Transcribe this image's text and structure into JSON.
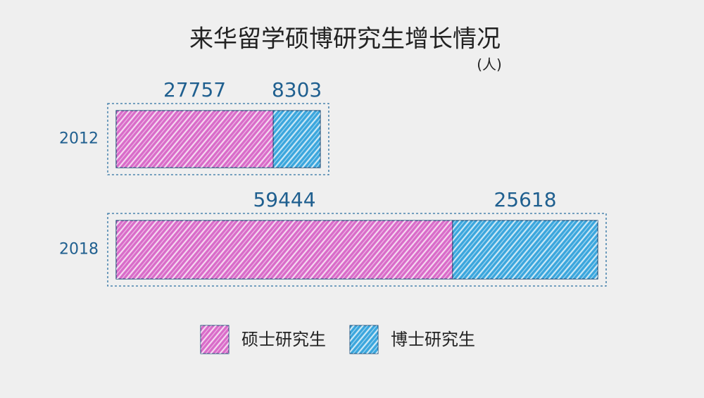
{
  "chart_data": {
    "type": "stacked_bar_horizontal",
    "title": "来华留学硕博研究生增长情况",
    "unit": "(人)",
    "categories": [
      "2012",
      "2018"
    ],
    "series": [
      {
        "name": "硕士研究生",
        "color": "#d96bc9",
        "values": [
          27757,
          59444
        ]
      },
      {
        "name": "博士研究生",
        "color": "#3aa6dd",
        "values": [
          8303,
          25618
        ]
      }
    ]
  }
}
